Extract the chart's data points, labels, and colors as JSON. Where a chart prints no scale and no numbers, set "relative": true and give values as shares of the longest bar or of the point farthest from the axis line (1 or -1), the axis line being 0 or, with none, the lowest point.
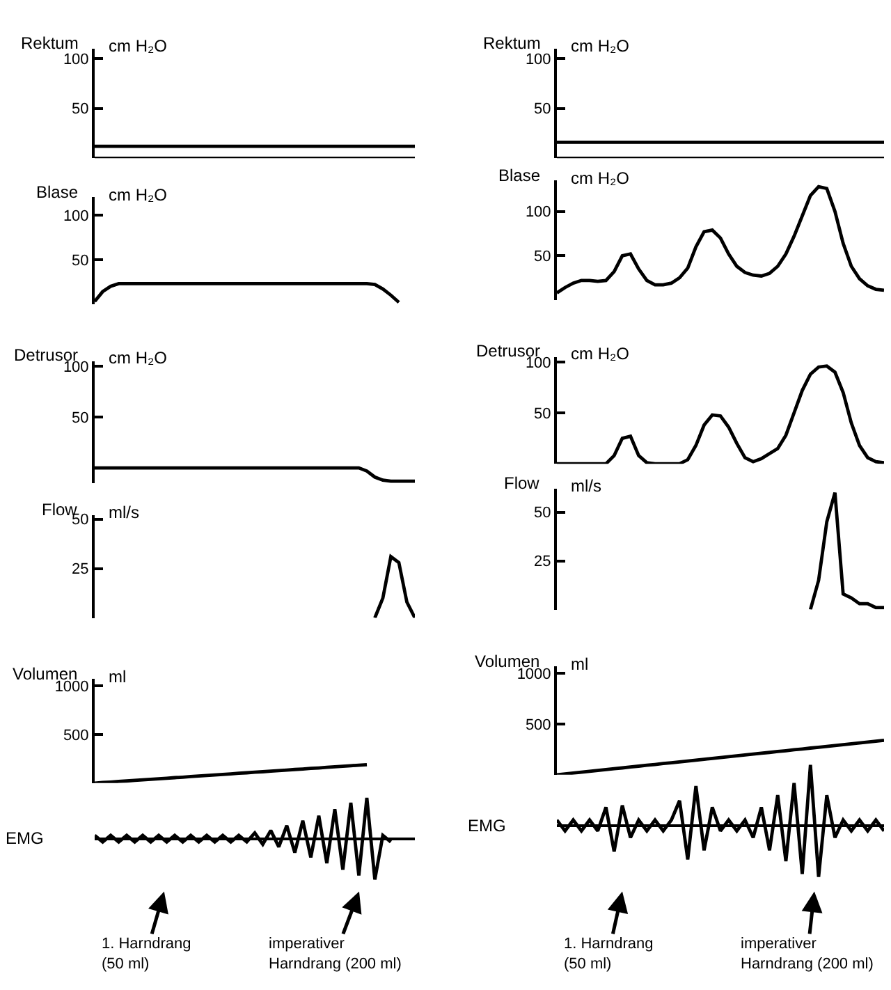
{
  "chart_data": [
    {
      "type": "line",
      "title": "Rektum",
      "ylabel": "cm H₂O",
      "ylim": [
        0,
        110
      ],
      "yticks": [
        50,
        100
      ],
      "tick_labels": "y",
      "categories": [
        null,
        null,
        null,
        null,
        null,
        null,
        null,
        null,
        null,
        null,
        null,
        null,
        null,
        null,
        null,
        null,
        null,
        null,
        null,
        null,
        null,
        null,
        null,
        null,
        null,
        null,
        null,
        null,
        null,
        null,
        null,
        null,
        null,
        null,
        null,
        null,
        null,
        null,
        null,
        null,
        null
      ],
      "series": [
        {
          "color": "#000000",
          "values": [
            12,
            12,
            12,
            12,
            12,
            12,
            12,
            12,
            12,
            12,
            12,
            12,
            12,
            12,
            12,
            12,
            12,
            12,
            12,
            12,
            12,
            12,
            12,
            12,
            12,
            12,
            12,
            12,
            12,
            12,
            12,
            12,
            12,
            12,
            12,
            12,
            12,
            12,
            12,
            12,
            12
          ]
        },
        {
          "color": "#000000",
          "values": [
            0,
            0,
            0,
            0,
            0,
            0,
            0,
            0,
            0,
            0,
            0,
            0,
            0,
            0,
            0,
            0,
            0,
            0,
            0,
            0,
            0,
            0,
            0,
            0,
            0,
            0,
            0,
            0,
            0,
            0,
            0,
            0,
            0,
            0,
            0,
            0,
            0,
            0,
            0,
            0,
            0
          ]
        }
      ]
    },
    {
      "type": "line",
      "title": "Rektum",
      "ylabel": "cm H₂O",
      "ylim": [
        0,
        110
      ],
      "yticks": [
        50,
        100
      ],
      "tick_labels": "y",
      "categories": [
        null,
        null,
        null,
        null,
        null,
        null,
        null,
        null,
        null,
        null,
        null,
        null,
        null,
        null,
        null,
        null,
        null,
        null,
        null,
        null,
        null,
        null,
        null,
        null,
        null,
        null,
        null,
        null,
        null,
        null,
        null,
        null,
        null,
        null,
        null,
        null,
        null,
        null,
        null,
        null,
        null
      ],
      "series": [
        {
          "color": "#000000",
          "values": [
            16,
            16,
            16,
            16,
            16,
            16,
            16,
            16,
            16,
            16,
            16,
            16,
            16,
            16,
            16,
            16,
            16,
            16,
            16,
            16,
            16,
            16,
            16,
            16,
            16,
            16,
            16,
            16,
            16,
            16,
            16,
            16,
            16,
            16,
            16,
            16,
            16,
            16,
            16,
            16,
            16
          ]
        },
        {
          "color": "#000000",
          "values": [
            0,
            0,
            0,
            0,
            0,
            0,
            0,
            0,
            0,
            0,
            0,
            0,
            0,
            0,
            0,
            0,
            0,
            0,
            0,
            0,
            0,
            0,
            0,
            0,
            0,
            0,
            0,
            0,
            0,
            0,
            0,
            0,
            0,
            0,
            0,
            0,
            0,
            0,
            0,
            0,
            0
          ]
        }
      ]
    },
    {
      "type": "line",
      "title": "Blase",
      "ylabel": "cm H₂O",
      "ylim": [
        0,
        120
      ],
      "yticks": [
        50,
        100
      ],
      "tick_labels": "y",
      "color": "#000000",
      "categories": [
        null,
        null,
        null,
        null,
        null,
        null,
        null,
        null,
        null,
        null,
        null,
        null,
        null,
        null,
        null,
        null,
        null,
        null,
        null,
        null,
        null,
        null,
        null,
        null,
        null,
        null,
        null,
        null,
        null,
        null,
        null,
        null,
        null,
        null,
        null,
        null,
        null,
        null,
        null,
        null,
        null
      ],
      "values": [
        3,
        14,
        20,
        23,
        23,
        23,
        23,
        23,
        23,
        23,
        23,
        23,
        23,
        23,
        23,
        23,
        23,
        23,
        23,
        23,
        23,
        23,
        23,
        23,
        23,
        23,
        23,
        23,
        23,
        23,
        23,
        23,
        23,
        23,
        23,
        22,
        17,
        10,
        2,
        null,
        null
      ]
    },
    {
      "type": "line",
      "title": "Blase",
      "ylabel": "cm H₂O",
      "ylim": [
        0,
        135
      ],
      "yticks": [
        50,
        100
      ],
      "tick_labels": "y",
      "color": "#000000",
      "categories": [
        null,
        null,
        null,
        null,
        null,
        null,
        null,
        null,
        null,
        null,
        null,
        null,
        null,
        null,
        null,
        null,
        null,
        null,
        null,
        null,
        null,
        null,
        null,
        null,
        null,
        null,
        null,
        null,
        null,
        null,
        null,
        null,
        null,
        null,
        null,
        null,
        null,
        null,
        null,
        null,
        null
      ],
      "values": [
        8,
        14,
        19,
        22,
        22,
        21,
        22,
        32,
        50,
        52,
        35,
        22,
        17,
        17,
        19,
        25,
        36,
        60,
        77,
        79,
        70,
        52,
        38,
        31,
        28,
        27,
        30,
        38,
        52,
        72,
        95,
        118,
        128,
        126,
        100,
        64,
        38,
        24,
        16,
        12,
        11
      ]
    },
    {
      "type": "line",
      "title": "Detrusor",
      "ylabel": "cm H₂O",
      "ylim": [
        -15,
        105
      ],
      "yticks": [
        50,
        100
      ],
      "tick_labels": "y",
      "color": "#000000",
      "categories": [
        null,
        null,
        null,
        null,
        null,
        null,
        null,
        null,
        null,
        null,
        null,
        null,
        null,
        null,
        null,
        null,
        null,
        null,
        null,
        null,
        null,
        null,
        null,
        null,
        null,
        null,
        null,
        null,
        null,
        null,
        null,
        null,
        null,
        null,
        null,
        null,
        null,
        null,
        null,
        null,
        null
      ],
      "values": [
        0,
        0,
        0,
        0,
        0,
        0,
        0,
        0,
        0,
        0,
        0,
        0,
        0,
        0,
        0,
        0,
        0,
        0,
        0,
        0,
        0,
        0,
        0,
        0,
        0,
        0,
        0,
        0,
        0,
        0,
        0,
        0,
        0,
        0,
        -3,
        -9,
        -12,
        -13,
        -13,
        -13,
        -13
      ]
    },
    {
      "type": "line",
      "title": "Detrusor",
      "ylabel": "cm H₂O",
      "ylim": [
        0,
        105
      ],
      "yticks": [
        50,
        100
      ],
      "tick_labels": "y",
      "color": "#000000",
      "categories": [
        null,
        null,
        null,
        null,
        null,
        null,
        null,
        null,
        null,
        null,
        null,
        null,
        null,
        null,
        null,
        null,
        null,
        null,
        null,
        null,
        null,
        null,
        null,
        null,
        null,
        null,
        null,
        null,
        null,
        null,
        null,
        null,
        null,
        null,
        null,
        null,
        null,
        null,
        null,
        null,
        null
      ],
      "values": [
        0,
        0,
        0,
        0,
        0,
        0,
        0,
        8,
        25,
        27,
        8,
        1,
        0,
        0,
        0,
        0,
        4,
        18,
        38,
        48,
        47,
        36,
        20,
        6,
        2,
        5,
        10,
        15,
        28,
        50,
        72,
        88,
        95,
        96,
        90,
        70,
        40,
        18,
        6,
        2,
        1
      ]
    },
    {
      "type": "line",
      "title": "Flow",
      "ylabel": "ml/s",
      "ylim": [
        0,
        52
      ],
      "yticks": [
        25,
        50
      ],
      "tick_labels": "y",
      "color": "#000000",
      "categories": [
        null,
        null,
        null,
        null,
        null,
        null,
        null,
        null,
        null,
        null,
        null,
        null,
        null,
        null,
        null,
        null,
        null,
        null,
        null,
        null,
        null,
        null,
        null,
        null,
        null,
        null,
        null,
        null,
        null,
        null,
        null,
        null,
        null,
        null,
        null,
        null,
        null,
        null,
        null,
        null,
        null
      ],
      "values": [
        null,
        null,
        null,
        null,
        null,
        null,
        null,
        null,
        null,
        null,
        null,
        null,
        null,
        null,
        null,
        null,
        null,
        null,
        null,
        null,
        null,
        null,
        null,
        null,
        null,
        null,
        null,
        null,
        null,
        null,
        null,
        null,
        null,
        null,
        null,
        0,
        10,
        31,
        28,
        8,
        0
      ]
    },
    {
      "type": "line",
      "title": "Flow",
      "ylabel": "ml/s",
      "ylim": [
        0,
        62
      ],
      "yticks": [
        25,
        50
      ],
      "tick_labels": "y",
      "color": "#000000",
      "categories": [
        null,
        null,
        null,
        null,
        null,
        null,
        null,
        null,
        null,
        null,
        null,
        null,
        null,
        null,
        null,
        null,
        null,
        null,
        null,
        null,
        null,
        null,
        null,
        null,
        null,
        null,
        null,
        null,
        null,
        null,
        null,
        null,
        null,
        null,
        null,
        null,
        null,
        null,
        null,
        null,
        null
      ],
      "values": [
        null,
        null,
        null,
        null,
        null,
        null,
        null,
        null,
        null,
        null,
        null,
        null,
        null,
        null,
        null,
        null,
        null,
        null,
        null,
        null,
        null,
        null,
        null,
        null,
        null,
        null,
        null,
        null,
        null,
        null,
        null,
        0,
        15,
        45,
        60,
        8,
        6,
        3,
        3,
        1,
        1
      ]
    },
    {
      "type": "line",
      "title": "Volumen",
      "ylabel": "ml",
      "ylim": [
        0,
        1070
      ],
      "yticks": [
        500,
        1000
      ],
      "tick_labels": "y",
      "color": "#000000",
      "categories": [
        null,
        null,
        null,
        null,
        null,
        null,
        null,
        null,
        null,
        null,
        null,
        null,
        null,
        null,
        null,
        null,
        null,
        null,
        null,
        null,
        null,
        null,
        null,
        null,
        null,
        null,
        null,
        null,
        null,
        null,
        null,
        null,
        null,
        null,
        null,
        null,
        null,
        null,
        null,
        null,
        null
      ],
      "values": [
        0,
        6,
        11,
        17,
        22,
        28,
        34,
        39,
        45,
        50,
        56,
        61,
        67,
        73,
        78,
        84,
        89,
        95,
        101,
        106,
        112,
        117,
        123,
        129,
        134,
        140,
        145,
        151,
        156,
        162,
        168,
        173,
        179,
        184,
        190,
        null,
        null,
        null,
        null,
        null,
        null
      ]
    },
    {
      "type": "line",
      "title": "Volumen",
      "ylabel": "ml",
      "ylim": [
        0,
        1070
      ],
      "yticks": [
        500,
        1000
      ],
      "tick_labels": "y",
      "color": "#000000",
      "categories": [
        null,
        null,
        null,
        null,
        null,
        null,
        null,
        null,
        null,
        null,
        null,
        null,
        null,
        null,
        null,
        null,
        null,
        null,
        null,
        null,
        null,
        null,
        null,
        null,
        null,
        null,
        null,
        null,
        null,
        null,
        null,
        null,
        null,
        null,
        null,
        null,
        null,
        null,
        null,
        null,
        null
      ],
      "values": [
        0,
        9,
        17,
        26,
        34,
        43,
        51,
        60,
        68,
        77,
        85,
        94,
        102,
        111,
        119,
        128,
        136,
        145,
        153,
        162,
        170,
        179,
        187,
        196,
        204,
        213,
        221,
        230,
        238,
        247,
        255,
        264,
        272,
        281,
        289,
        298,
        306,
        315,
        323,
        332,
        340
      ]
    },
    {
      "type": "line",
      "title": "EMG",
      "relative": true,
      "tick_labels": false,
      "color": "#000000",
      "categories": [
        null,
        null,
        null,
        null,
        null,
        null,
        null,
        null,
        null,
        null,
        null,
        null,
        null,
        null,
        null,
        null,
        null,
        null,
        null,
        null,
        null,
        null,
        null,
        null,
        null,
        null,
        null,
        null,
        null,
        null,
        null,
        null,
        null,
        null,
        null,
        null,
        null,
        null,
        null,
        null,
        null
      ],
      "values": [
        0.08,
        -0.08,
        0.08,
        -0.08,
        0.08,
        -0.08,
        0.08,
        -0.08,
        0.08,
        -0.08,
        0.08,
        -0.08,
        0.08,
        -0.08,
        0.08,
        -0.08,
        0.08,
        -0.08,
        0.08,
        -0.08,
        0.14,
        -0.14,
        0.2,
        -0.2,
        0.32,
        -0.34,
        0.44,
        -0.46,
        0.56,
        -0.6,
        0.72,
        -0.76,
        0.88,
        -0.9,
        1,
        -1,
        0.08,
        -0.08,
        null,
        null,
        null
      ],
      "annotations": [
        "1. Harndrang\n(50 ml)",
        "imperativer\nHarndrang (200 ml)"
      ]
    },
    {
      "type": "line",
      "title": "EMG",
      "relative": true,
      "tick_labels": false,
      "color": "#000000",
      "categories": [
        null,
        null,
        null,
        null,
        null,
        null,
        null,
        null,
        null,
        null,
        null,
        null,
        null,
        null,
        null,
        null,
        null,
        null,
        null,
        null,
        null,
        null,
        null,
        null,
        null,
        null,
        null,
        null,
        null,
        null,
        null,
        null,
        null,
        null,
        null,
        null,
        null,
        null,
        null,
        null,
        null
      ],
      "values": [
        0.09,
        -0.09,
        0.09,
        -0.09,
        0.09,
        -0.09,
        0.3,
        -0.43,
        0.33,
        -0.2,
        0.09,
        -0.09,
        0.09,
        -0.09,
        0.09,
        0.41,
        -0.56,
        0.65,
        -0.41,
        0.3,
        -0.09,
        0.09,
        -0.09,
        0.09,
        -0.2,
        0.3,
        -0.41,
        0.5,
        -0.59,
        0.7,
        -0.8,
        1,
        -0.85,
        0.5,
        -0.2,
        0.09,
        -0.09,
        0.09,
        -0.09,
        0.09,
        -0.09
      ],
      "annotations": [
        "1. Harndrang\n(50 ml)",
        "imperativer\nHarndrang (200 ml)"
      ]
    }
  ]
}
